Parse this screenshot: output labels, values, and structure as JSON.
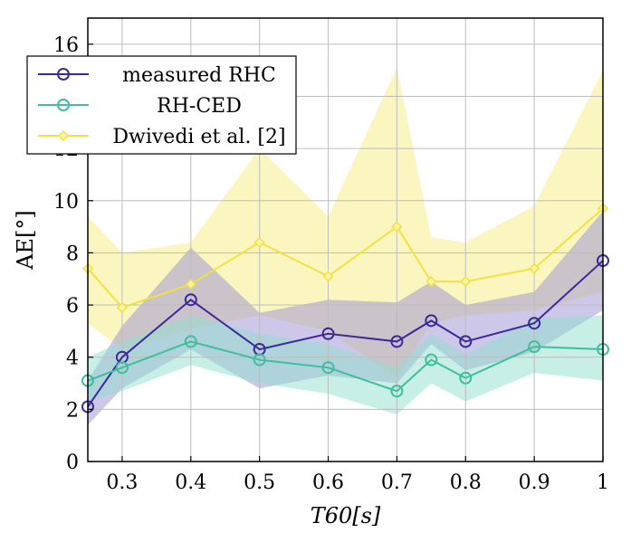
{
  "chart_data": {
    "type": "line",
    "xlabel": "T60[s]",
    "ylabel": "AE[°]",
    "xlim": [
      0.25,
      1.0
    ],
    "ylim": [
      0,
      17
    ],
    "x_ticks": [
      0.3,
      0.4,
      0.5,
      0.6,
      0.7,
      0.8,
      0.9,
      1
    ],
    "x_tick_labels": [
      "0.3",
      "0.4",
      "0.5",
      "0.6",
      "0.7",
      "0.8",
      "0.9",
      "1"
    ],
    "y_ticks": [
      0,
      2,
      4,
      6,
      8,
      10,
      12,
      14,
      16
    ],
    "y_tick_labels": [
      "0",
      "2",
      "4",
      "6",
      "8",
      "10",
      "12",
      "14",
      "16"
    ],
    "grid": true,
    "legend_position": "top-left",
    "x": [
      0.25,
      0.3,
      0.4,
      0.5,
      0.6,
      0.7,
      0.75,
      0.8,
      0.9,
      1.0
    ],
    "series": [
      {
        "name": "Dwivedi et al. [2]",
        "color": "#f2e142",
        "band_color": "#f7ee8a",
        "marker": "diamond",
        "values": [
          7.4,
          5.9,
          6.8,
          8.4,
          7.1,
          9.0,
          6.9,
          6.9,
          7.4,
          9.7
        ],
        "lower": [
          5.3,
          4.3,
          5.1,
          5.6,
          5.0,
          3.2,
          5.3,
          5.6,
          5.8,
          6.5
        ],
        "upper": [
          9.4,
          8.0,
          8.4,
          12.0,
          9.4,
          15.1,
          8.6,
          8.4,
          9.8,
          15.0
        ]
      },
      {
        "name": "measured RHC",
        "color": "#3d2a99",
        "band_color": "#9b8fd6",
        "marker": "circle",
        "values": [
          2.1,
          4.0,
          6.2,
          4.3,
          4.9,
          4.6,
          5.4,
          4.6,
          5.3,
          7.7
        ],
        "lower": [
          1.4,
          2.8,
          4.3,
          2.8,
          3.3,
          3.0,
          4.5,
          3.5,
          4.2,
          5.8
        ],
        "upper": [
          3.1,
          5.2,
          8.2,
          5.7,
          6.2,
          6.1,
          6.9,
          6.0,
          6.5,
          9.6
        ]
      },
      {
        "name": "RH-CED",
        "color": "#3fbf9e",
        "band_color": "#8fe0cb",
        "marker": "circle",
        "values": [
          3.1,
          3.6,
          4.6,
          3.9,
          3.6,
          2.7,
          3.9,
          3.2,
          4.4,
          4.3
        ],
        "lower": [
          2.3,
          2.7,
          3.7,
          3.0,
          2.6,
          1.8,
          3.0,
          2.3,
          3.4,
          3.1
        ],
        "upper": [
          4.0,
          4.6,
          5.6,
          4.9,
          4.5,
          3.6,
          4.9,
          4.1,
          5.5,
          5.6
        ]
      }
    ],
    "legend_order": [
      "measured RHC",
      "RH-CED",
      "Dwivedi et al. [2]"
    ]
  }
}
